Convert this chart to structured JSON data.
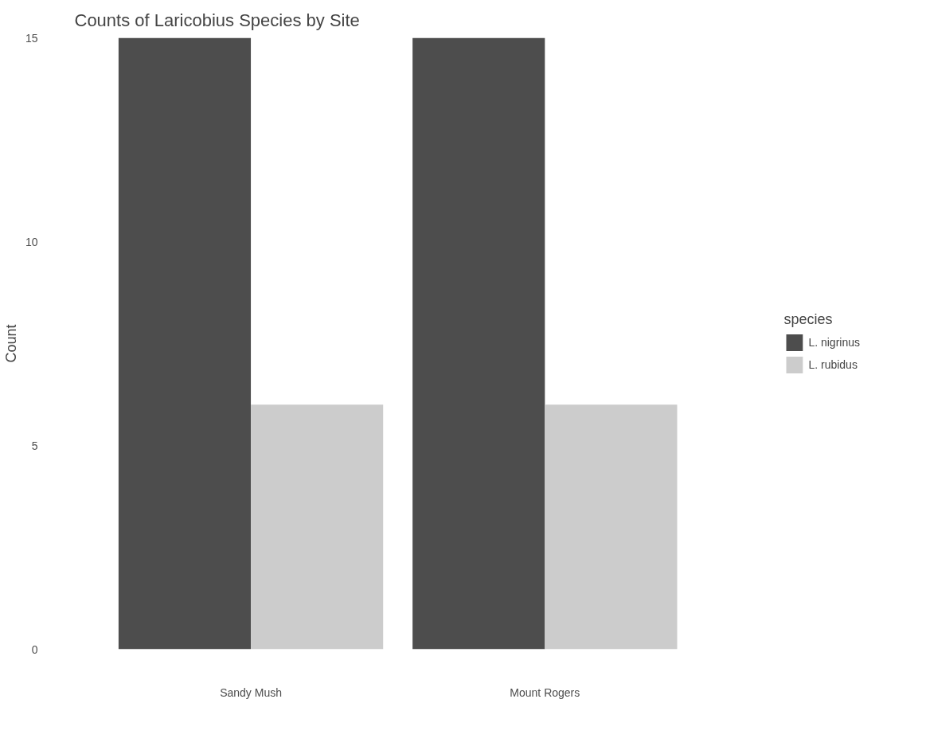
{
  "chart_data": {
    "type": "bar",
    "title": "Counts of Laricobius Species by Site",
    "ylabel": "Count",
    "legend_title": "species",
    "categories": [
      "Sandy Mush",
      "Mount Rogers"
    ],
    "series": [
      {
        "name": "L. nigrinus",
        "color": "#4d4d4d",
        "values": [
          15,
          15
        ]
      },
      {
        "name": "L. rubidus",
        "color": "#cccccc",
        "values": [
          6,
          6
        ]
      }
    ],
    "ylim": [
      0,
      15
    ],
    "yticks": [
      0,
      5,
      10,
      15
    ],
    "grid": false,
    "legend": "right"
  }
}
